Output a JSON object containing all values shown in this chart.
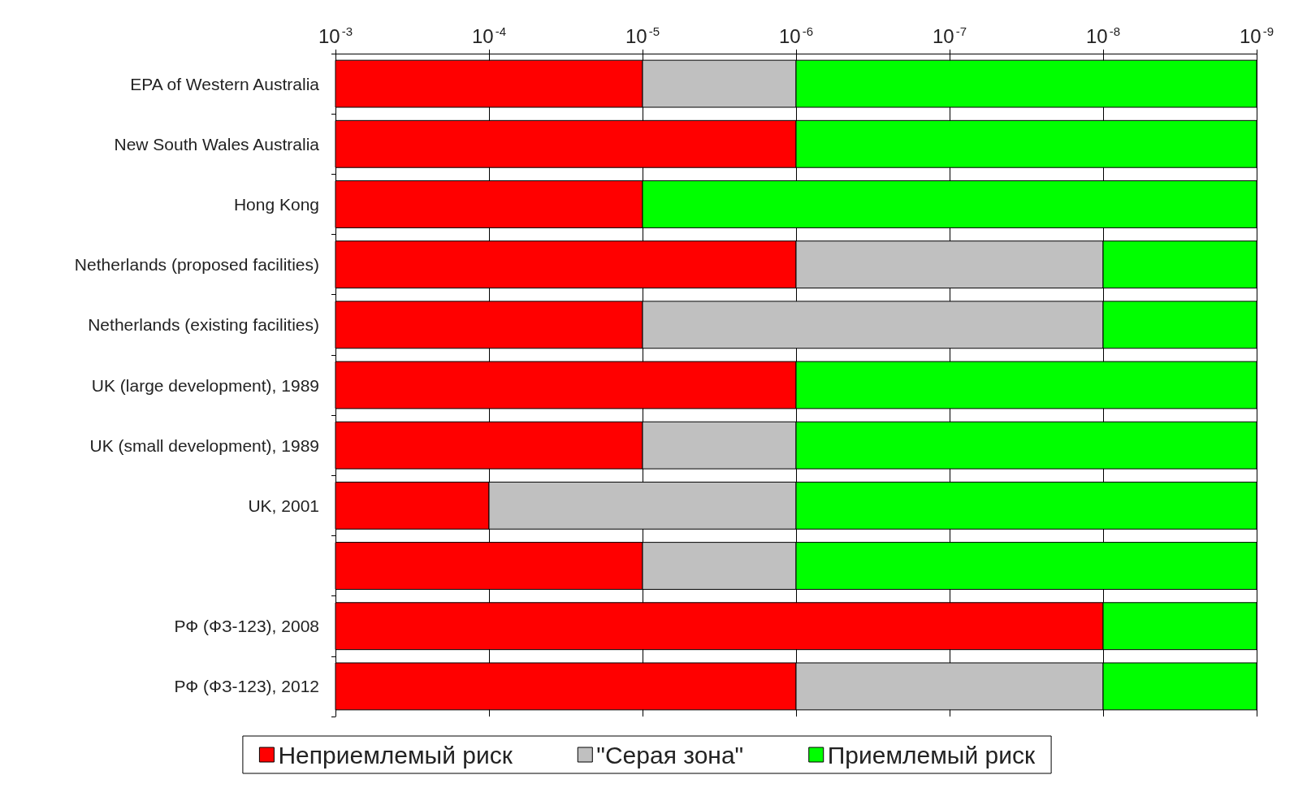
{
  "chart_data": {
    "type": "bar",
    "orientation": "horizontal",
    "log": "x",
    "categories": [
      "EPA of Western Australia",
      "New South Wales Australia",
      "Hong Kong",
      "Netherlands (proposed facilities)",
      "Netherlands (existing facilities)",
      "UK (large development), 1989",
      "UK (small development), 1989",
      "UK, 2001",
      null,
      "РФ (ФЗ-123), 2008",
      "РФ (ФЗ-123), 2012"
    ],
    "series": [
      {
        "name": "Неприемлемый риск",
        "color": "#ff0000",
        "base": [
          0.001,
          0.001,
          0.001,
          0.001,
          0.001,
          0.001,
          0.001,
          0.001,
          0.001,
          0.001,
          0.001
        ],
        "values": [
          -0.00099,
          -0.000999,
          -0.00099,
          -0.000999,
          -0.00099,
          -0.000999,
          -0.00099,
          -0.0009,
          -0.00099,
          -0.00099999,
          -0.000999
        ]
      },
      {
        "name": "\"Серая зона\"",
        "color": "#c0c0c0",
        "base": [
          1e-05,
          null,
          null,
          1e-06,
          1e-05,
          null,
          1e-05,
          0.0001,
          1e-05,
          null,
          1e-06
        ],
        "values": [
          -9e-06,
          null,
          null,
          -9.9e-07,
          -9.99e-06,
          null,
          -9e-06,
          -9.9e-05,
          -9e-06,
          null,
          -9.9e-07
        ]
      },
      {
        "name": "Приемлемый риск",
        "color": "#00ff00",
        "base": [
          1e-06,
          1e-06,
          1e-05,
          1e-08,
          1e-08,
          1e-06,
          1e-06,
          1e-06,
          1e-06,
          1e-08,
          1e-08
        ],
        "values": [
          -9.99e-07,
          -9.99e-07,
          -9.999e-06,
          -9e-09,
          -9e-09,
          -9.99e-07,
          -9.99e-07,
          -9.99e-07,
          -9.99e-07,
          -9e-09,
          -9e-09
        ]
      }
    ],
    "xlim": [
      0.001,
      1e-09
    ],
    "xticks": [
      {
        "value": 0.001,
        "label": "10$^{-3}$"
      },
      {
        "value": 0.0001,
        "label": "10$^{-4}$"
      },
      {
        "value": 1e-05,
        "label": "10$^{-5}$"
      },
      {
        "value": 1e-06,
        "label": "10$^{-6}$"
      },
      {
        "value": 1e-07,
        "label": "10$^{-7}$"
      },
      {
        "value": 1e-08,
        "label": "10$^{-8}$"
      },
      {
        "value": 1e-09,
        "label": "10$^{-9}$"
      }
    ],
    "grid": "x",
    "legend": "bottom"
  }
}
